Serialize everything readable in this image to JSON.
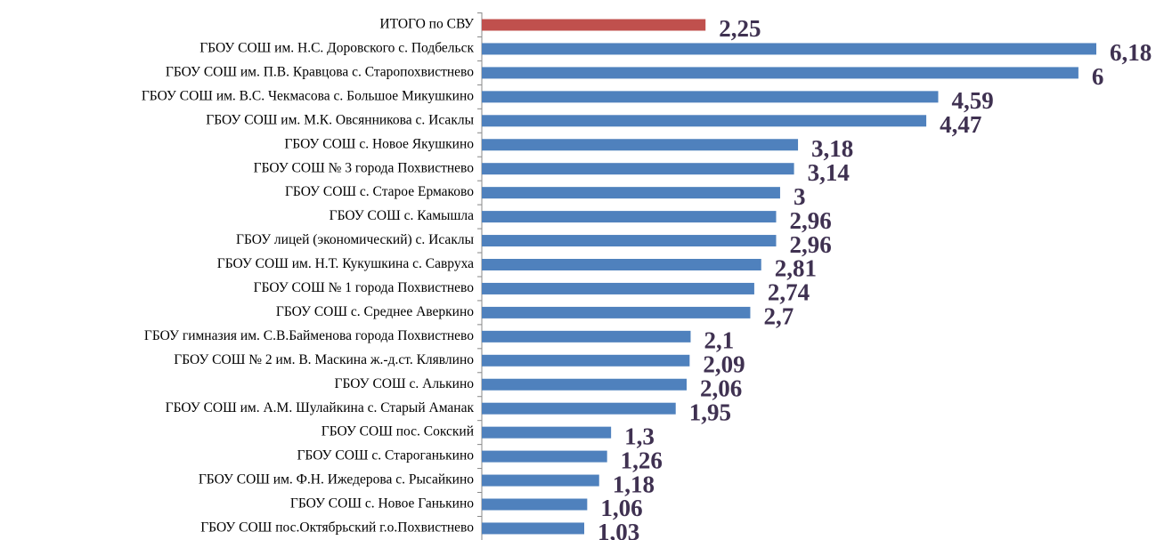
{
  "chart_data": {
    "type": "barh",
    "categories": [
      "ИТОГО по СВУ",
      "ГБОУ СОШ им. Н.С. Доровского с. Подбельск",
      "ГБОУ СОШ им. П.В. Кравцова с. Старопохвистнево",
      "ГБОУ СОШ им. В.С. Чекмасова с. Большое Микушкино",
      "ГБОУ СОШ им. М.К. Овсянникова с. Исаклы",
      "ГБОУ СОШ с. Новое Якушкино",
      "ГБОУ СОШ № 3 города Похвистнево",
      "ГБОУ СОШ с. Старое Ермаково",
      "ГБОУ СОШ с. Камышла",
      "ГБОУ лицей (экономический) с. Исаклы",
      "ГБОУ СОШ им. Н.Т. Кукушкина с. Савруха",
      "ГБОУ СОШ № 1 города Похвистнево",
      "ГБОУ СОШ с. Среднее Аверкино",
      "ГБОУ гимназия им. С.В.Байменова города Похвистнево",
      "ГБОУ СОШ № 2 им. В. Маскина ж.-д.ст. Клявлино",
      "ГБОУ СОШ с. Алькино",
      "ГБОУ СОШ им. А.М. Шулайкина с. Старый Аманак",
      "ГБОУ СОШ пос. Сокский",
      "ГБОУ СОШ с. Староганькино",
      "ГБОУ СОШ им. Ф.Н. Ижедерова с. Рысайкино",
      "ГБОУ СОШ с. Новое Ганькино",
      "ГБОУ СОШ пос.Октябрьский г.о.Похвистнево"
    ],
    "values": [
      2.25,
      6.18,
      6,
      4.59,
      4.47,
      3.18,
      3.14,
      3,
      2.96,
      2.96,
      2.81,
      2.74,
      2.7,
      2.1,
      2.09,
      2.06,
      1.95,
      1.3,
      1.26,
      1.18,
      1.06,
      1.03
    ],
    "value_labels": [
      "2,25",
      "6,18",
      "6",
      "4,59",
      "4,47",
      "3,18",
      "3,14",
      "3",
      "2,96",
      "2,96",
      "2,81",
      "2,74",
      "2,7",
      "2,1",
      "2,09",
      "2,06",
      "1,95",
      "1,3",
      "1,26",
      "1,18",
      "1,06",
      "1,03"
    ],
    "colors": [
      "#c0504d",
      "#4f81bd",
      "#4f81bd",
      "#4f81bd",
      "#4f81bd",
      "#4f81bd",
      "#4f81bd",
      "#4f81bd",
      "#4f81bd",
      "#4f81bd",
      "#4f81bd",
      "#4f81bd",
      "#4f81bd",
      "#4f81bd",
      "#4f81bd",
      "#4f81bd",
      "#4f81bd",
      "#4f81bd",
      "#4f81bd",
      "#4f81bd",
      "#4f81bd",
      "#4f81bd"
    ],
    "value_label_color": "#3f3151"
  }
}
